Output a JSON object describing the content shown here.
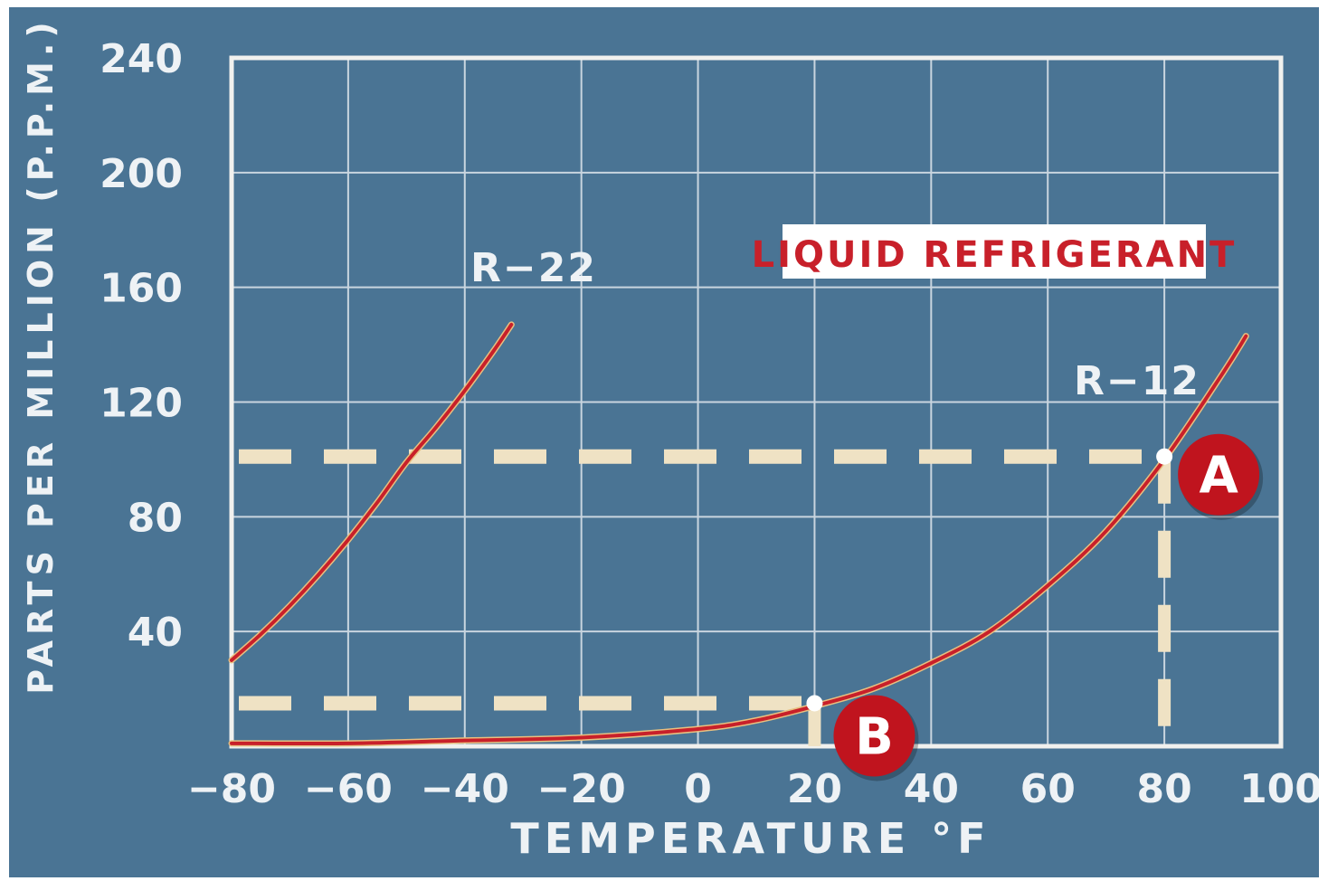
{
  "chart_data": {
    "type": "line",
    "title": "",
    "xlabel": "TEMPERATURE °F",
    "ylabel": "PARTS PER MILLION (P.P.M.)",
    "xlim": [
      -80,
      100
    ],
    "ylim": [
      0,
      240
    ],
    "x_ticks": [
      -80,
      -60,
      -40,
      -20,
      0,
      20,
      40,
      60,
      80,
      100
    ],
    "y_ticks": [
      40,
      80,
      120,
      160,
      200,
      240
    ],
    "x_tick_labels": [
      "−80",
      "−60",
      "−40",
      "−20",
      "0",
      "20",
      "40",
      "60",
      "80",
      "100"
    ],
    "y_tick_labels": [
      "40",
      "80",
      "120",
      "160",
      "200",
      "240"
    ],
    "grid": true,
    "legend_box": "LIQUID REFRIGERANT",
    "series": [
      {
        "name": "R−22",
        "x": [
          -80,
          -75,
          -70,
          -65,
          -60,
          -55,
          -50,
          -45,
          -40,
          -35,
          -32
        ],
        "y": [
          30,
          39,
          49,
          60,
          72,
          85,
          99,
          111,
          124,
          138,
          147
        ]
      },
      {
        "name": "R−12",
        "x": [
          -80,
          -60,
          -40,
          -20,
          0,
          10,
          20,
          30,
          40,
          50,
          60,
          70,
          80,
          90,
          94
        ],
        "y": [
          1,
          1,
          2,
          3,
          6,
          9,
          14,
          20,
          29,
          40,
          56,
          75,
          100,
          130,
          143
        ]
      }
    ],
    "annotations": [
      {
        "label": "A",
        "x": 80,
        "y": 101
      },
      {
        "label": "B",
        "x": 20,
        "y": 15
      }
    ],
    "colors": {
      "background": "#4a7494",
      "grid": "#c9d5df",
      "curve": "#c8202a",
      "curve_highlight": "#e8c080",
      "guide": "#efe2c4",
      "marker": "#c0141e",
      "text": "#eef2f5"
    }
  }
}
